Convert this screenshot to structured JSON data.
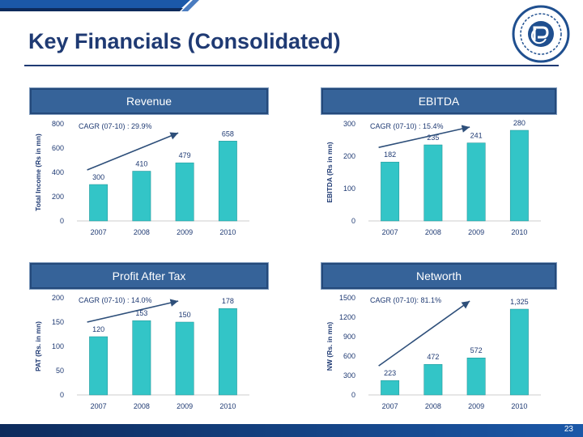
{
  "slide": {
    "title": "Key Financials (Consolidated)",
    "page_number": "23"
  },
  "colors": {
    "bar": "#33c5c7",
    "bar_stroke": "#1e8f92",
    "header": "#366399",
    "title": "#1f3a73",
    "arrow": "#2e4f7a"
  },
  "chart_data": [
    {
      "type": "bar",
      "title": "Revenue",
      "ylabel": "Total Income (Rs in mn)",
      "categories": [
        "2007",
        "2008",
        "2009",
        "2010"
      ],
      "values": [
        300,
        410,
        479,
        658
      ],
      "value_labels": [
        "300",
        "410",
        "479",
        "658"
      ],
      "ylim": [
        0,
        800
      ],
      "yticks": [
        0,
        200,
        400,
        600,
        800
      ],
      "annotation": "CAGR (07-10) : 29.9%"
    },
    {
      "type": "bar",
      "title": "EBITDA",
      "ylabel": "EBITDA (Rs in mn)",
      "categories": [
        "2007",
        "2008",
        "2009",
        "2010"
      ],
      "values": [
        182,
        235,
        241,
        280
      ],
      "value_labels": [
        "182",
        "235",
        "241",
        "280"
      ],
      "ylim": [
        0,
        300
      ],
      "yticks": [
        0,
        100,
        200,
        300
      ],
      "annotation": "CAGR (07-10) : 15.4%"
    },
    {
      "type": "bar",
      "title": "Profit After Tax",
      "ylabel": "PAT (Rs. in mn)",
      "categories": [
        "2007",
        "2008",
        "2009",
        "2010"
      ],
      "values": [
        120,
        153,
        150,
        178
      ],
      "value_labels": [
        "120",
        "153",
        "150",
        "178"
      ],
      "ylim": [
        0,
        200
      ],
      "yticks": [
        0,
        50,
        100,
        150,
        200
      ],
      "annotation": "CAGR (07-10) : 14.0%"
    },
    {
      "type": "bar",
      "title": "Networth",
      "ylabel": "NW (Rs. in mn)",
      "categories": [
        "2007",
        "2008",
        "2009",
        "2010"
      ],
      "values": [
        223,
        472,
        572,
        1325
      ],
      "value_labels": [
        "223",
        "472",
        "572",
        "1,325"
      ],
      "ylim": [
        0,
        1500
      ],
      "yticks": [
        0,
        300,
        600,
        900,
        1200,
        1500
      ],
      "annotation": "CAGR (07-10): 81.1%"
    }
  ]
}
